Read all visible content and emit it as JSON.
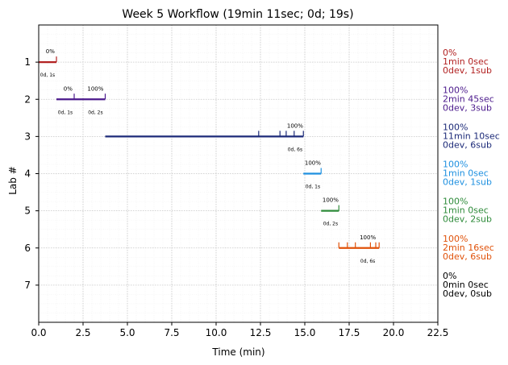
{
  "chart_data": {
    "type": "gantt",
    "title": "Week 5 Workflow (19min 11sec; 0d; 19s)",
    "xlabel": "Time (min)",
    "ylabel": "Lab #",
    "xlim": [
      0,
      22.5
    ],
    "ylim": [
      8,
      0
    ],
    "x_ticks": [
      "0.0",
      "2.5",
      "5.0",
      "7.5",
      "10.0",
      "12.5",
      "15.0",
      "17.5",
      "20.0",
      "22.5"
    ],
    "y_ticks": [
      "1",
      "2",
      "3",
      "4",
      "5",
      "6",
      "7"
    ],
    "grid": true,
    "minor_grid": true,
    "labs": [
      {
        "lab": 1,
        "color": "#b22222",
        "start": 0.0,
        "end": 1.0,
        "ticks": [
          1.0
        ],
        "pct_labels": [
          {
            "x": 0.65,
            "text": "0%"
          }
        ],
        "dur_labels": [
          {
            "x": 0.5,
            "text": "0d, 1s"
          }
        ],
        "side": [
          "0%",
          "1min 0sec",
          "0dev, 1sub"
        ]
      },
      {
        "lab": 2,
        "color": "#4b1a8c",
        "start": 1.0,
        "end": 3.75,
        "ticks": [
          2.0,
          3.75
        ],
        "pct_labels": [
          {
            "x": 1.65,
            "text": "0%"
          },
          {
            "x": 3.2,
            "text": "100%"
          }
        ],
        "dur_labels": [
          {
            "x": 1.5,
            "text": "0d, 1s"
          },
          {
            "x": 3.2,
            "text": "0d, 2s"
          }
        ],
        "side": [
          "100%",
          "2min 45sec",
          "0dev, 3sub"
        ]
      },
      {
        "lab": 3,
        "color": "#1c2a78",
        "start": 3.75,
        "end": 14.92,
        "ticks": [
          12.4,
          13.6,
          13.95,
          14.4,
          14.92
        ],
        "pct_labels": [
          {
            "x": 14.45,
            "text": "100%"
          }
        ],
        "dur_labels": [
          {
            "x": 14.45,
            "text": "0d, 6s"
          }
        ],
        "side": [
          "100%",
          "11min 10sec",
          "0dev, 6sub"
        ]
      },
      {
        "lab": 4,
        "color": "#1e90e0",
        "start": 14.92,
        "end": 15.92,
        "ticks": [
          15.92
        ],
        "pct_labels": [
          {
            "x": 15.45,
            "text": "100%"
          }
        ],
        "dur_labels": [
          {
            "x": 15.45,
            "text": "0d, 1s"
          }
        ],
        "side": [
          "100%",
          "1min 0sec",
          "0dev, 1sub"
        ]
      },
      {
        "lab": 5,
        "color": "#2e8b3a",
        "start": 15.92,
        "end": 16.92,
        "ticks": [
          16.92
        ],
        "pct_labels": [
          {
            "x": 16.45,
            "text": "100%"
          }
        ],
        "dur_labels": [
          {
            "x": 16.45,
            "text": "0d, 2s"
          }
        ],
        "side": [
          "100%",
          "1min 0sec",
          "0dev, 2sub"
        ]
      },
      {
        "lab": 6,
        "color": "#e0520a",
        "start": 16.92,
        "end": 19.19,
        "ticks": [
          16.92,
          17.4,
          17.85,
          18.7,
          19.0,
          19.19
        ],
        "pct_labels": [
          {
            "x": 18.55,
            "text": "100%"
          }
        ],
        "dur_labels": [
          {
            "x": 18.55,
            "text": "0d, 6s"
          }
        ],
        "side": [
          "100%",
          "2min 16sec",
          "0dev, 6sub"
        ]
      },
      {
        "lab": 7,
        "color": "#000000",
        "start": null,
        "end": null,
        "ticks": [],
        "pct_labels": [],
        "dur_labels": [],
        "side": [
          "0%",
          "0min 0sec",
          "0dev, 0sub"
        ]
      }
    ]
  }
}
